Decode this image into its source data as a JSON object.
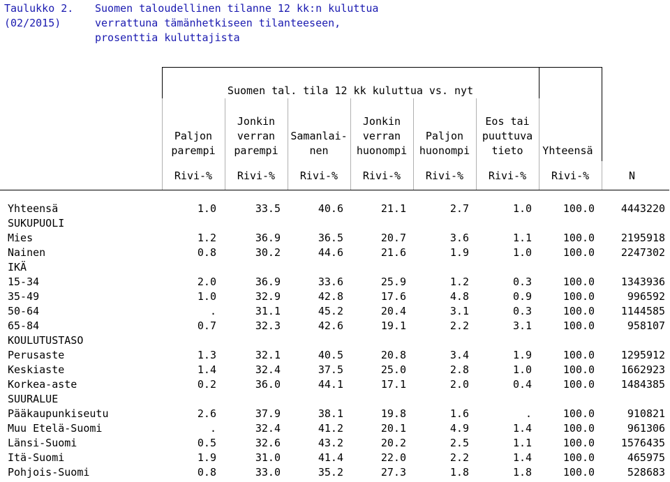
{
  "title": {
    "label_line1": "Taulukko 2.",
    "label_line2": "(02/2015)",
    "text_line1": "Suomen taloudellinen tilanne 12 kk:n kuluttua",
    "text_line2": "verrattuna tämänhetkiseen tilanteeseen,",
    "text_line3": "prosenttia kuluttajista"
  },
  "table": {
    "spanner": "Suomen tal. tila 12 kk kuluttua vs. nyt",
    "columns": [
      {
        "l1": "",
        "l2": "Paljon",
        "l3": "parempi",
        "unit": "Rivi-%"
      },
      {
        "l1": "Jonkin",
        "l2": "verran",
        "l3": "parempi",
        "unit": "Rivi-%"
      },
      {
        "l1": "",
        "l2": "Samanlai-",
        "l3": "nen",
        "unit": "Rivi-%"
      },
      {
        "l1": "Jonkin",
        "l2": "verran",
        "l3": "huonompi",
        "unit": "Rivi-%"
      },
      {
        "l1": "",
        "l2": "Paljon",
        "l3": "huonompi",
        "unit": "Rivi-%"
      },
      {
        "l1": "Eos tai",
        "l2": "puuttuva",
        "l3": "tieto",
        "unit": "Rivi-%"
      },
      {
        "l1": "",
        "l2": "",
        "l3": "Yhteensä",
        "unit": "Rivi-%"
      }
    ],
    "n_label": "N",
    "rows": [
      {
        "label": "Yhteensä",
        "values": [
          "1.0",
          "33.5",
          "40.6",
          "21.1",
          "2.7",
          "1.0",
          "100.0",
          "4443220"
        ]
      },
      {
        "label": "SUKUPUOLI",
        "values": [
          "",
          "",
          "",
          "",
          "",
          "",
          "",
          ""
        ]
      },
      {
        "label": "Mies",
        "values": [
          "1.2",
          "36.9",
          "36.5",
          "20.7",
          "3.6",
          "1.1",
          "100.0",
          "2195918"
        ]
      },
      {
        "label": "Nainen",
        "values": [
          "0.8",
          "30.2",
          "44.6",
          "21.6",
          "1.9",
          "1.0",
          "100.0",
          "2247302"
        ]
      },
      {
        "label": "IKÄ",
        "values": [
          "",
          "",
          "",
          "",
          "",
          "",
          "",
          ""
        ]
      },
      {
        "label": "15-34",
        "values": [
          "2.0",
          "36.9",
          "33.6",
          "25.9",
          "1.2",
          "0.3",
          "100.0",
          "1343936"
        ]
      },
      {
        "label": "35-49",
        "values": [
          "1.0",
          "32.9",
          "42.8",
          "17.6",
          "4.8",
          "0.9",
          "100.0",
          "996592"
        ]
      },
      {
        "label": "50-64",
        "values": [
          ".",
          "31.1",
          "45.2",
          "20.4",
          "3.1",
          "0.3",
          "100.0",
          "1144585"
        ]
      },
      {
        "label": "65-84",
        "values": [
          "0.7",
          "32.3",
          "42.6",
          "19.1",
          "2.2",
          "3.1",
          "100.0",
          "958107"
        ]
      },
      {
        "label": "KOULUTUSTASO",
        "values": [
          "",
          "",
          "",
          "",
          "",
          "",
          "",
          ""
        ]
      },
      {
        "label": "Perusaste",
        "values": [
          "1.3",
          "32.1",
          "40.5",
          "20.8",
          "3.4",
          "1.9",
          "100.0",
          "1295912"
        ]
      },
      {
        "label": "Keskiaste",
        "values": [
          "1.4",
          "32.4",
          "37.5",
          "25.0",
          "2.8",
          "1.0",
          "100.0",
          "1662923"
        ]
      },
      {
        "label": "Korkea-aste",
        "values": [
          "0.2",
          "36.0",
          "44.1",
          "17.1",
          "2.0",
          "0.4",
          "100.0",
          "1484385"
        ]
      },
      {
        "label": "SUURALUE",
        "values": [
          "",
          "",
          "",
          "",
          "",
          "",
          "",
          ""
        ]
      },
      {
        "label": "Pääkaupunkiseutu",
        "values": [
          "2.6",
          "37.9",
          "38.1",
          "19.8",
          "1.6",
          ".",
          "100.0",
          "910821"
        ]
      },
      {
        "label": "Muu Etelä-Suomi",
        "values": [
          ".",
          "32.4",
          "41.2",
          "20.1",
          "4.9",
          "1.4",
          "100.0",
          "961306"
        ]
      },
      {
        "label": "Länsi-Suomi",
        "values": [
          "0.5",
          "32.6",
          "43.2",
          "20.2",
          "2.5",
          "1.1",
          "100.0",
          "1576435"
        ]
      },
      {
        "label": "Itä-Suomi",
        "values": [
          "1.9",
          "31.0",
          "41.4",
          "22.0",
          "2.2",
          "1.4",
          "100.0",
          "465975"
        ]
      },
      {
        "label": "Pohjois-Suomi",
        "values": [
          "0.8",
          "33.0",
          "35.2",
          "27.3",
          "1.8",
          "1.8",
          "100.0",
          "528683"
        ]
      }
    ]
  }
}
